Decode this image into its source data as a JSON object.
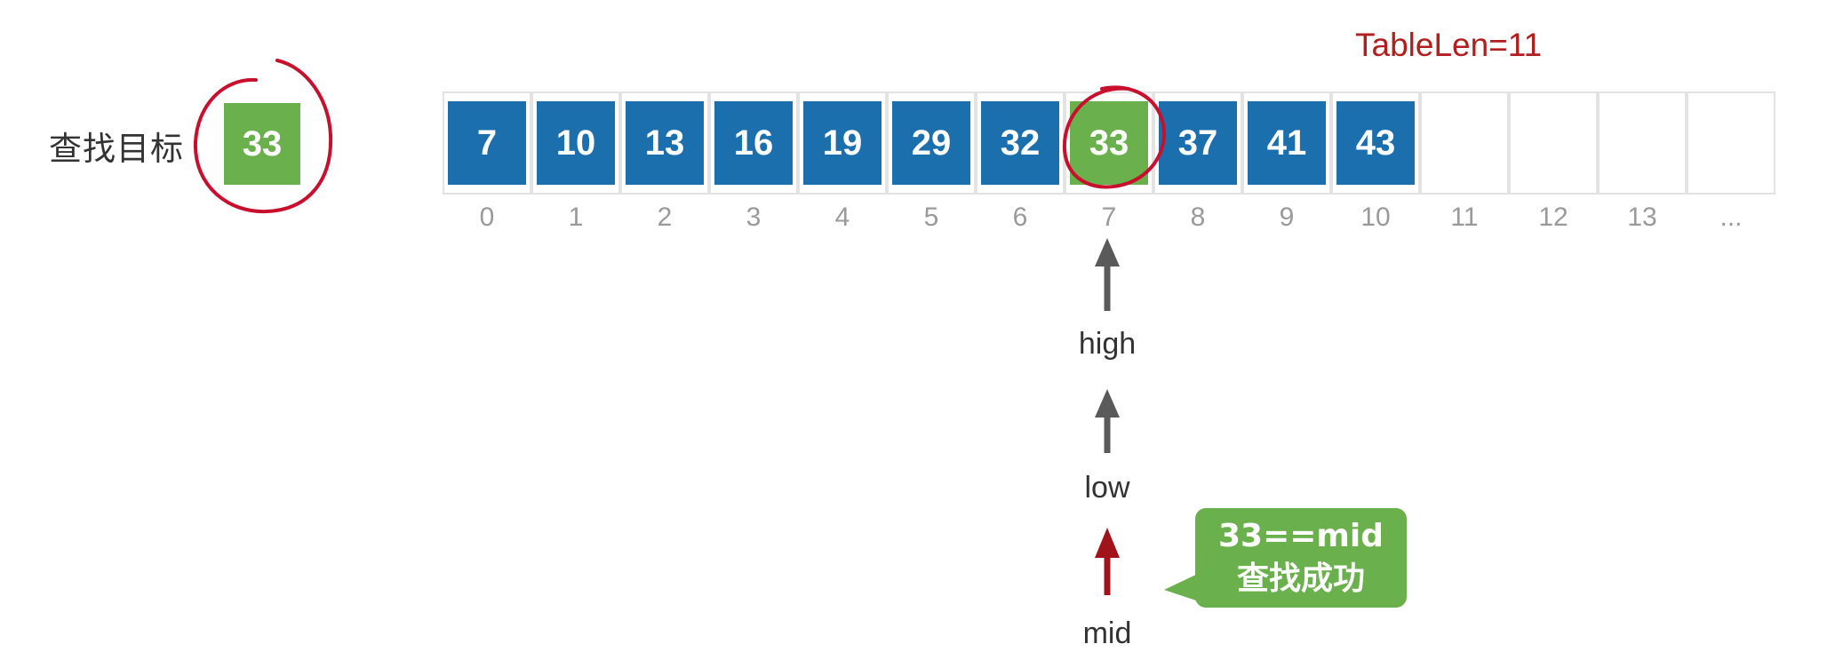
{
  "target": {
    "label": "查找目标",
    "value": "33"
  },
  "table_len": "TableLen=11",
  "array": {
    "values": [
      "7",
      "10",
      "13",
      "16",
      "19",
      "29",
      "32",
      "33",
      "37",
      "41",
      "43"
    ],
    "highlight_index": 7,
    "indices": [
      "0",
      "1",
      "2",
      "3",
      "4",
      "5",
      "6",
      "7",
      "8",
      "9",
      "10",
      "11",
      "12",
      "13",
      "..."
    ]
  },
  "pointers": {
    "high": "high",
    "low": "low",
    "mid": "mid"
  },
  "callout": {
    "line1": "33==mid",
    "line2": "查找成功"
  },
  "colors": {
    "cell": "#1c6fad",
    "found": "#6ab04c",
    "table_len": "#b01e1e",
    "mid_arrow": "#a0131a",
    "circle": "#c8102e"
  }
}
